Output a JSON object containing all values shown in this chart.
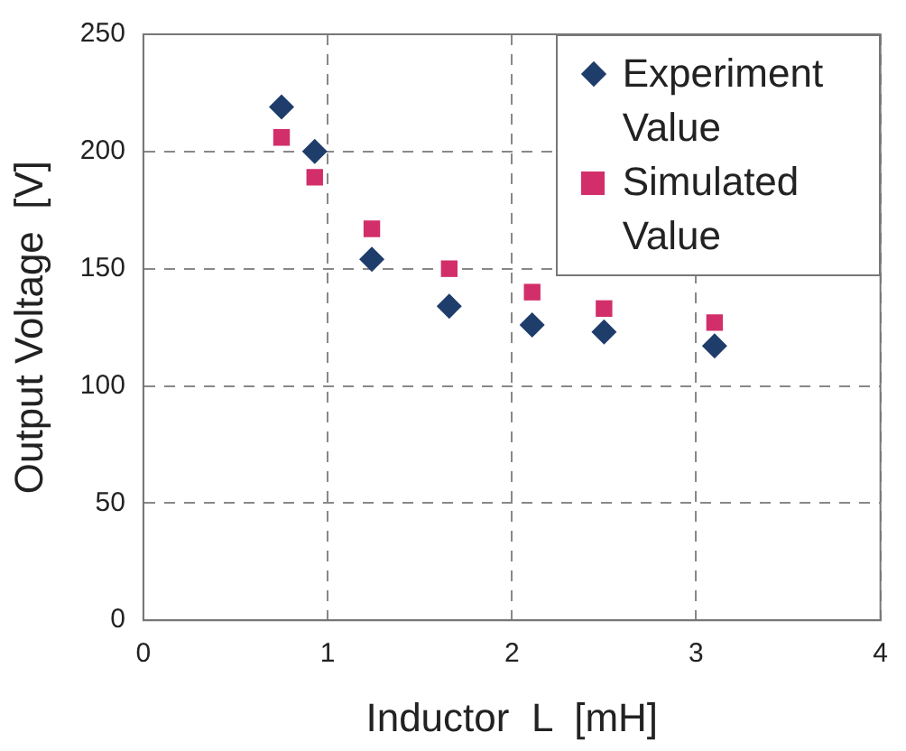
{
  "chart_data": {
    "type": "scatter",
    "xlabel": "Inductor  L  [mH]",
    "ylabel": "Output Voltage  [V]",
    "xlim": [
      0,
      4
    ],
    "xticks": [
      0,
      1,
      2,
      3,
      4
    ],
    "ylim": [
      0,
      250
    ],
    "yticks": [
      0,
      50,
      100,
      150,
      200,
      250
    ],
    "grid": true,
    "legend": "top right",
    "series": [
      {
        "name": "Experiment Value",
        "color": "#1f3d6b",
        "marker": "diamond",
        "x": [
          0.75,
          0.93,
          1.24,
          1.66,
          2.11,
          2.5,
          3.1
        ],
        "values": [
          219,
          200,
          154,
          134,
          126,
          123,
          117
        ]
      },
      {
        "name": "Simulated Value",
        "color": "#d22e6a",
        "marker": "square",
        "x": [
          0.75,
          0.93,
          1.24,
          1.66,
          2.11,
          2.5,
          3.1
        ],
        "values": [
          206,
          189,
          167,
          150,
          140,
          133,
          127
        ]
      }
    ]
  }
}
